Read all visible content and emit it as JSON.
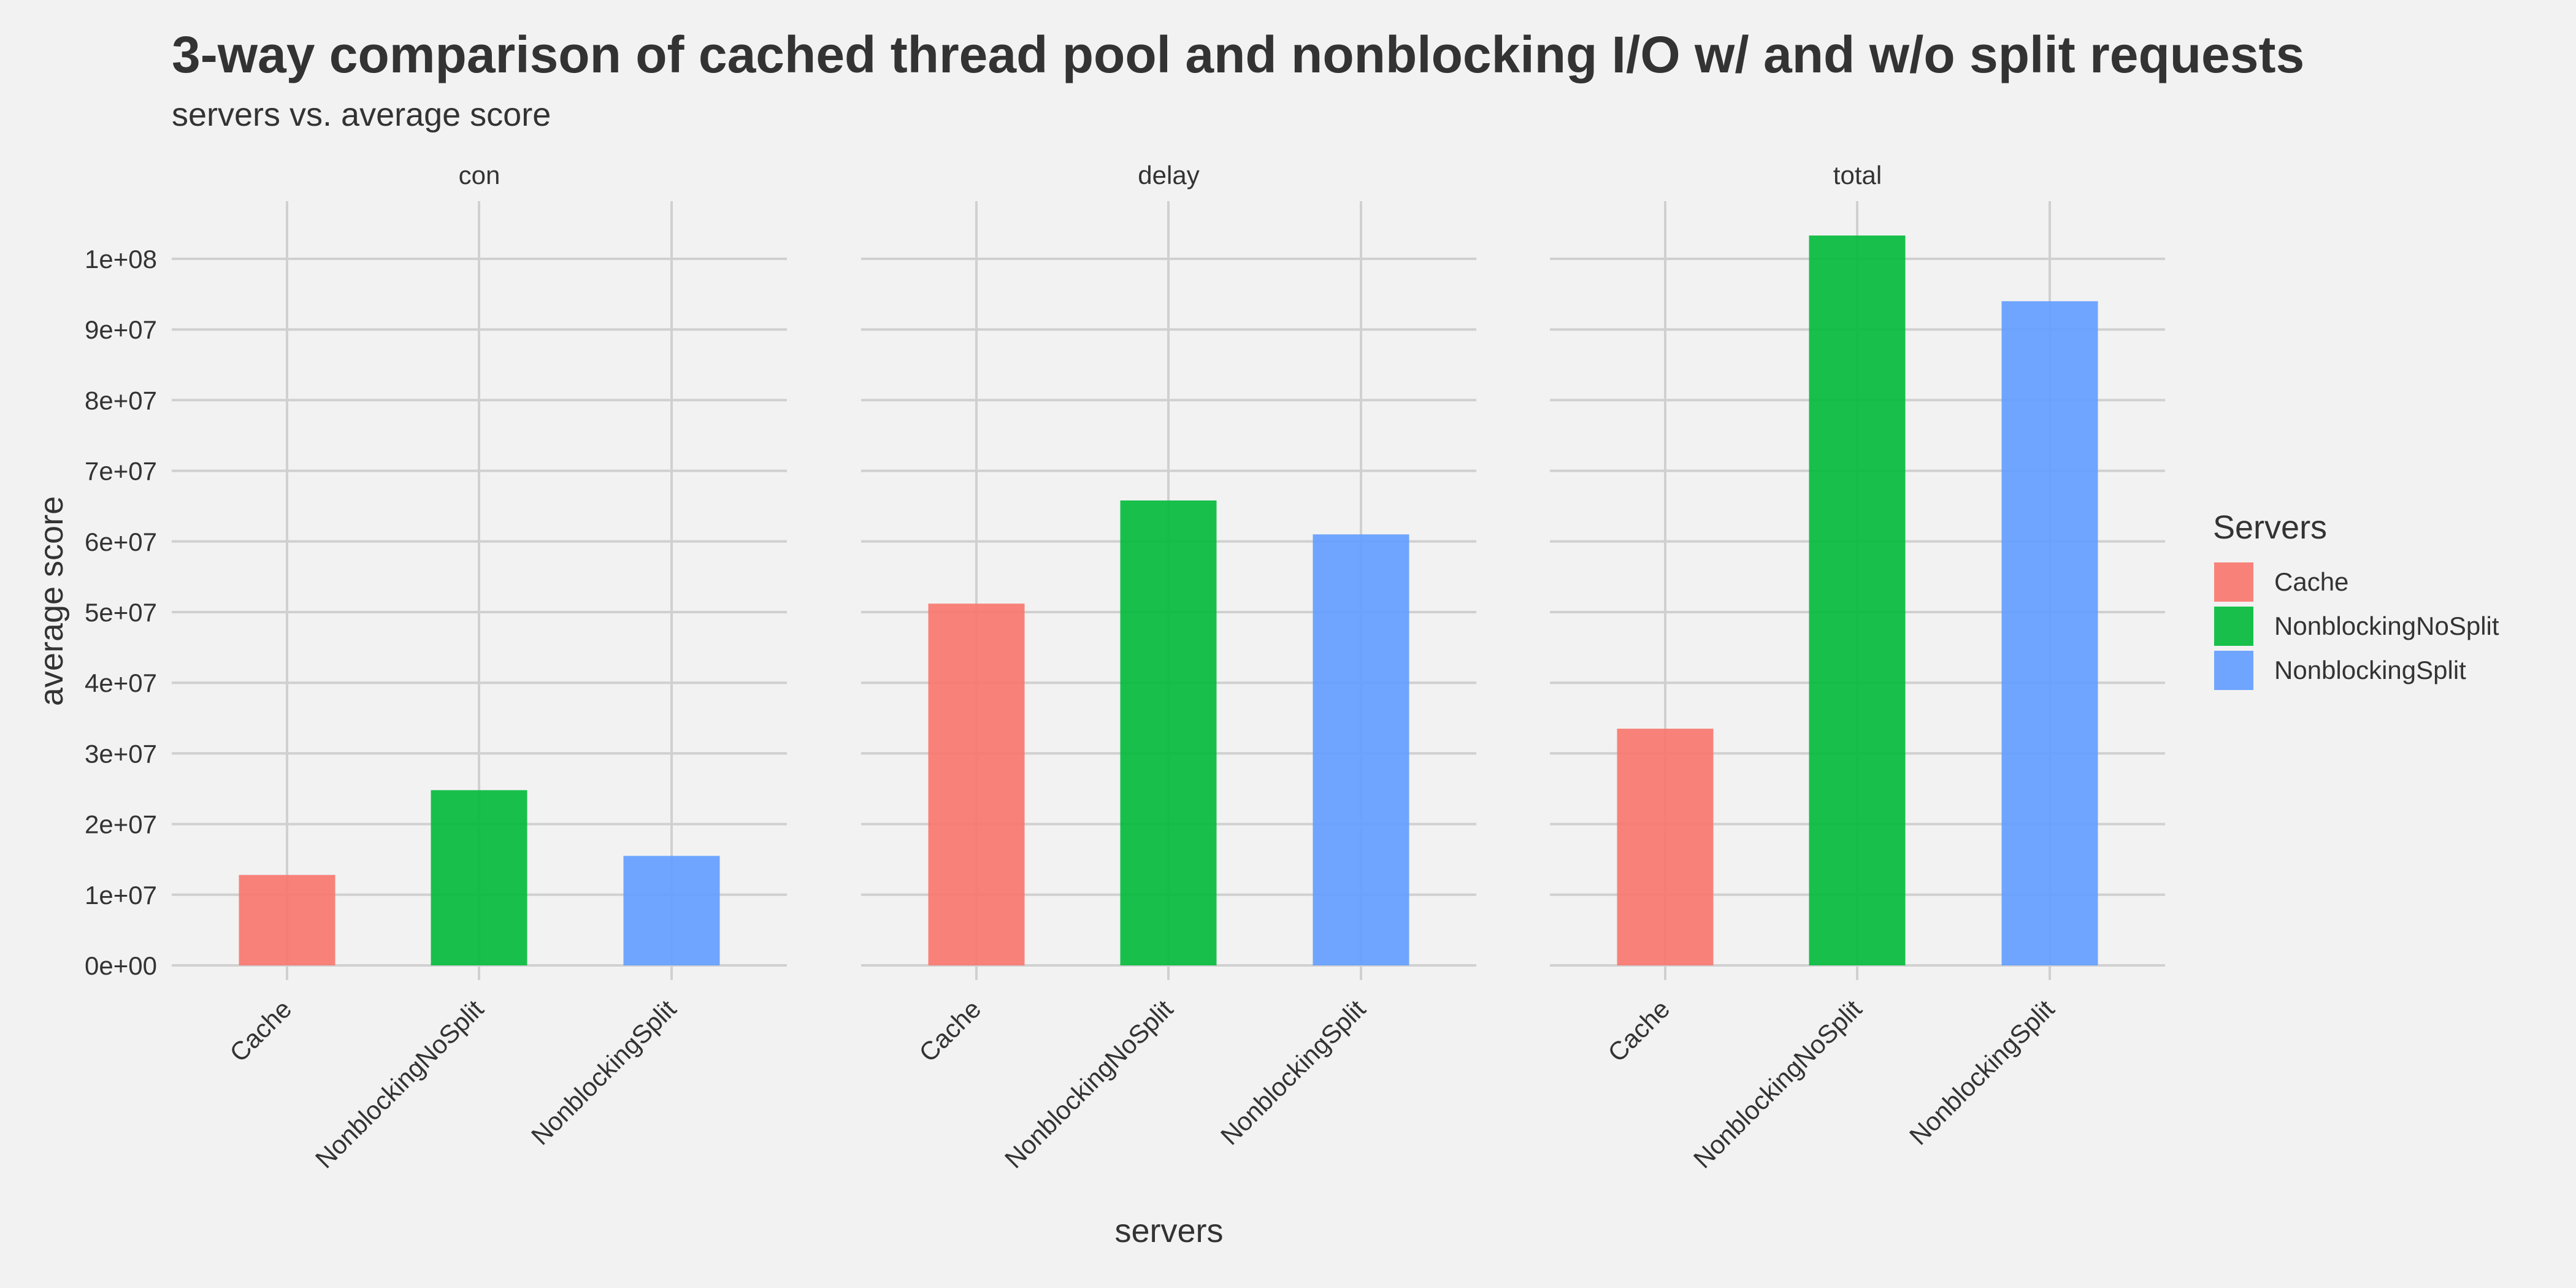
{
  "chart_data": {
    "type": "bar",
    "title": "3-way comparison of cached thread pool and nonblocking I/O w/ and w/o split requests",
    "subtitle": "servers vs. average score",
    "xlabel": "servers",
    "ylabel": "average score",
    "categories": [
      "Cache",
      "NonblockingNoSplit",
      "NonblockingSplit"
    ],
    "ylim": [
      0,
      108000000
    ],
    "yticks": [
      0,
      10000000,
      20000000,
      30000000,
      40000000,
      50000000,
      60000000,
      70000000,
      80000000,
      90000000,
      100000000
    ],
    "ytick_labels": [
      "0e+00",
      "1e+07",
      "2e+07",
      "3e+07",
      "4e+07",
      "5e+07",
      "6e+07",
      "7e+07",
      "8e+07",
      "9e+07",
      "1e+08"
    ],
    "grid": true,
    "legend_position": "right",
    "legend_title": "Servers",
    "colors": {
      "Cache": "#f8766d",
      "NonblockingNoSplit": "#00ba38",
      "NonblockingSplit": "#619cff"
    },
    "facets": [
      {
        "label": "con",
        "values": [
          12800000,
          24800000,
          15500000
        ]
      },
      {
        "label": "delay",
        "values": [
          51200000,
          65800000,
          61000000
        ]
      },
      {
        "label": "total",
        "values": [
          33500000,
          103300000,
          94000000
        ]
      }
    ]
  }
}
